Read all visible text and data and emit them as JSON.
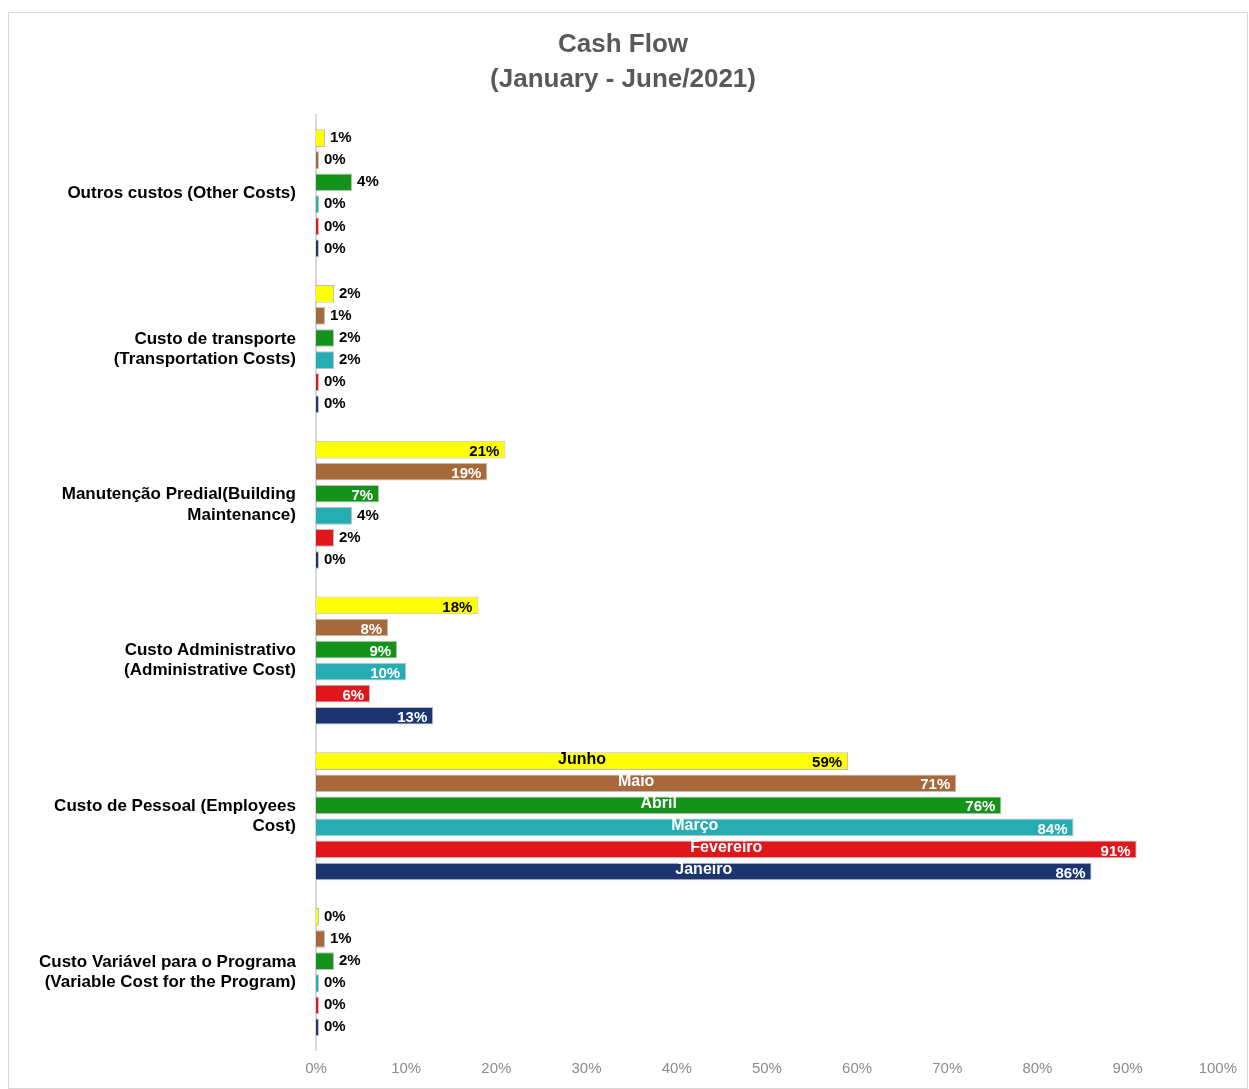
{
  "chart_data": {
    "type": "bar",
    "orientation": "horizontal",
    "title": "Cash Flow",
    "subtitle": "(January - June/2021)",
    "categories": [
      "Outros custos (Other Costs)",
      "Custo de transporte (Transportation Costs)",
      "Manutenção Predial(Building Maintenance)",
      "Custo Administrativo (Administrative Cost)",
      "Custo de Pessoal (Employees Cost)",
      "Custo Variável para o Programa (Variable Cost for the Program)"
    ],
    "series": [
      {
        "name": "Junho",
        "color": "#ffff00",
        "values": [
          1,
          2,
          21,
          18,
          59,
          0
        ],
        "value_labels": [
          "1%",
          "2%",
          "21%",
          "18%",
          "59%",
          "0%"
        ]
      },
      {
        "name": "Maio",
        "color": "#a8693a",
        "values": [
          0,
          1,
          19,
          8,
          71,
          1
        ],
        "value_labels": [
          "0%",
          "1%",
          "19%",
          "8%",
          "71%",
          "1%"
        ]
      },
      {
        "name": "Abril",
        "color": "#15921a",
        "values": [
          4,
          2,
          7,
          9,
          76,
          2
        ],
        "value_labels": [
          "4%",
          "2%",
          "7%",
          "9%",
          "76%",
          "2%"
        ]
      },
      {
        "name": "Março",
        "color": "#26adb3",
        "values": [
          0,
          2,
          4,
          10,
          84,
          0
        ],
        "value_labels": [
          "0%",
          "2%",
          "4%",
          "10%",
          "84%",
          "0%"
        ]
      },
      {
        "name": "Fevereiro",
        "color": "#e0161b",
        "values": [
          0,
          0,
          2,
          6,
          91,
          0
        ],
        "value_labels": [
          "0%",
          "0%",
          "2%",
          "6%",
          "91%",
          "0%"
        ]
      },
      {
        "name": "Janeiro",
        "color": "#1c3571",
        "values": [
          0,
          0,
          0,
          13,
          86,
          0
        ],
        "value_labels": [
          "0%",
          "0%",
          "0%",
          "13%",
          "86%",
          "0%"
        ]
      }
    ],
    "xlim": [
      0,
      100
    ],
    "xticks": [
      {
        "value": 0,
        "label": "0%"
      },
      {
        "value": 10,
        "label": "10%"
      },
      {
        "value": 20,
        "label": "20%"
      },
      {
        "value": 30,
        "label": "30%"
      },
      {
        "value": 40,
        "label": "40%"
      },
      {
        "value": 50,
        "label": "50%"
      },
      {
        "value": 60,
        "label": "60%"
      },
      {
        "value": 70,
        "label": "70%"
      },
      {
        "value": 80,
        "label": "80%"
      },
      {
        "value": 90,
        "label": "90%"
      },
      {
        "value": 100,
        "label": "100%"
      }
    ],
    "grid": false,
    "legend": false
  }
}
